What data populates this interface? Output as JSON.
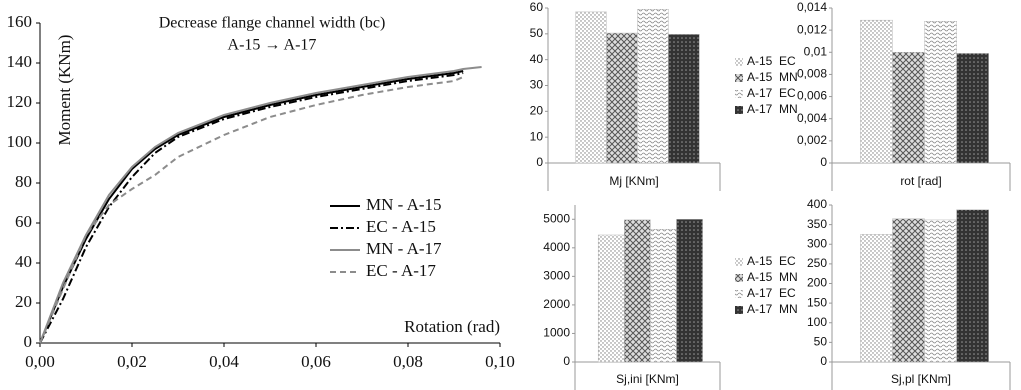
{
  "chart_data": [
    {
      "type": "line",
      "title": "Decrease flange channel width (bc)",
      "subtitle": "A-15 → A-17",
      "ylabel": "Moment  (KNm)",
      "xlabel": "Rotation  (rad)",
      "x": [
        0,
        0.005,
        0.01,
        0.015,
        0.02,
        0.025,
        0.03,
        0.04,
        0.05,
        0.06,
        0.07,
        0.08,
        0.09,
        0.092,
        0.096
      ],
      "xlim": [
        0,
        0.1
      ],
      "xticks": [
        {
          "value": 0,
          "label": "0,00"
        },
        {
          "value": 0.02,
          "label": "0,02"
        },
        {
          "value": 0.04,
          "label": "0,04"
        },
        {
          "value": 0.06,
          "label": "0,06"
        },
        {
          "value": 0.08,
          "label": "0,08"
        },
        {
          "value": 0.1,
          "label": "0,10"
        }
      ],
      "ylim": [
        0,
        160
      ],
      "yticks": [
        0,
        20,
        40,
        60,
        80,
        100,
        120,
        140,
        160
      ],
      "series": [
        {
          "name": "MN - A-15",
          "color": "#000000",
          "dash": "solid",
          "values": [
            0,
            28,
            52,
            72,
            87,
            97,
            104,
            113,
            119,
            124,
            128,
            132,
            135,
            136,
            null
          ]
        },
        {
          "name": "EC - A-15",
          "color": "#000000",
          "dash": "dashdot",
          "values": [
            0,
            22,
            48,
            68,
            83,
            95,
            103,
            112,
            118,
            123,
            127,
            131,
            134,
            135,
            null
          ]
        },
        {
          "name": "MN - A-17",
          "color": "#8c8c8c",
          "dash": "solid",
          "values": [
            0,
            30,
            54,
            74,
            88,
            98,
            105,
            114,
            120,
            125,
            129,
            133,
            136,
            137,
            138
          ]
        },
        {
          "name": "EC - A-17",
          "color": "#8c8c8c",
          "dash": "dashed",
          "values": [
            0,
            27,
            54,
            69,
            77,
            84,
            93,
            104,
            113,
            119,
            124,
            128,
            131,
            133,
            null
          ]
        }
      ]
    },
    {
      "type": "bar",
      "xlabel": "Mj [KNm]",
      "ylim": [
        0,
        60
      ],
      "yticks": [
        0,
        10,
        20,
        30,
        40,
        50,
        60
      ],
      "legend": true,
      "series": [
        {
          "name": "A-15  EC",
          "pattern": "dots",
          "values": [
            58.5
          ]
        },
        {
          "name": "A-15  MN",
          "pattern": "cross",
          "values": [
            50.3
          ]
        },
        {
          "name": "A-17  EC",
          "pattern": "waves",
          "values": [
            59.5
          ]
        },
        {
          "name": "A-17  MN",
          "pattern": "dense",
          "values": [
            49.8
          ]
        }
      ]
    },
    {
      "type": "bar",
      "xlabel": "rot [rad]",
      "ylim": [
        0,
        0.014
      ],
      "yticks": [
        0,
        {
          "value": 0.002,
          "label": "0,002"
        },
        {
          "value": 0.004,
          "label": "0,004"
        },
        {
          "value": 0.006,
          "label": "0,006"
        },
        {
          "value": 0.008,
          "label": "0,008"
        },
        {
          "value": 0.01,
          "label": "0,01"
        },
        {
          "value": 0.012,
          "label": "0,012"
        },
        {
          "value": 0.014,
          "label": "0,014"
        }
      ],
      "legend": false,
      "series": [
        {
          "pattern": "dots",
          "values": [
            0.0129
          ]
        },
        {
          "pattern": "cross",
          "values": [
            0.01
          ]
        },
        {
          "pattern": "waves",
          "values": [
            0.0128
          ]
        },
        {
          "pattern": "dense",
          "values": [
            0.0099
          ]
        }
      ]
    },
    {
      "type": "bar",
      "xlabel": "Sj,ini [KNm]",
      "ylim": [
        0,
        5500
      ],
      "yticks": [
        0,
        1000,
        2000,
        3000,
        4000,
        5000
      ],
      "legend": true,
      "series": [
        {
          "name": "A-15  EC",
          "pattern": "dots",
          "values": [
            4450
          ]
        },
        {
          "name": "A-15  MN",
          "pattern": "cross",
          "values": [
            4980
          ]
        },
        {
          "name": "A-17  EC",
          "pattern": "waves",
          "values": [
            4650
          ]
        },
        {
          "name": "A-17  MN",
          "pattern": "dense",
          "values": [
            5000
          ]
        }
      ]
    },
    {
      "type": "bar",
      "xlabel": "Sj,pl [KNm]",
      "ylim": [
        0,
        400
      ],
      "yticks": [
        0,
        50,
        100,
        150,
        200,
        250,
        300,
        350,
        400
      ],
      "legend": false,
      "series": [
        {
          "pattern": "dots",
          "values": [
            325
          ]
        },
        {
          "pattern": "cross",
          "values": [
            365
          ]
        },
        {
          "pattern": "waves",
          "values": [
            362
          ]
        },
        {
          "pattern": "dense",
          "values": [
            388
          ]
        }
      ]
    }
  ]
}
